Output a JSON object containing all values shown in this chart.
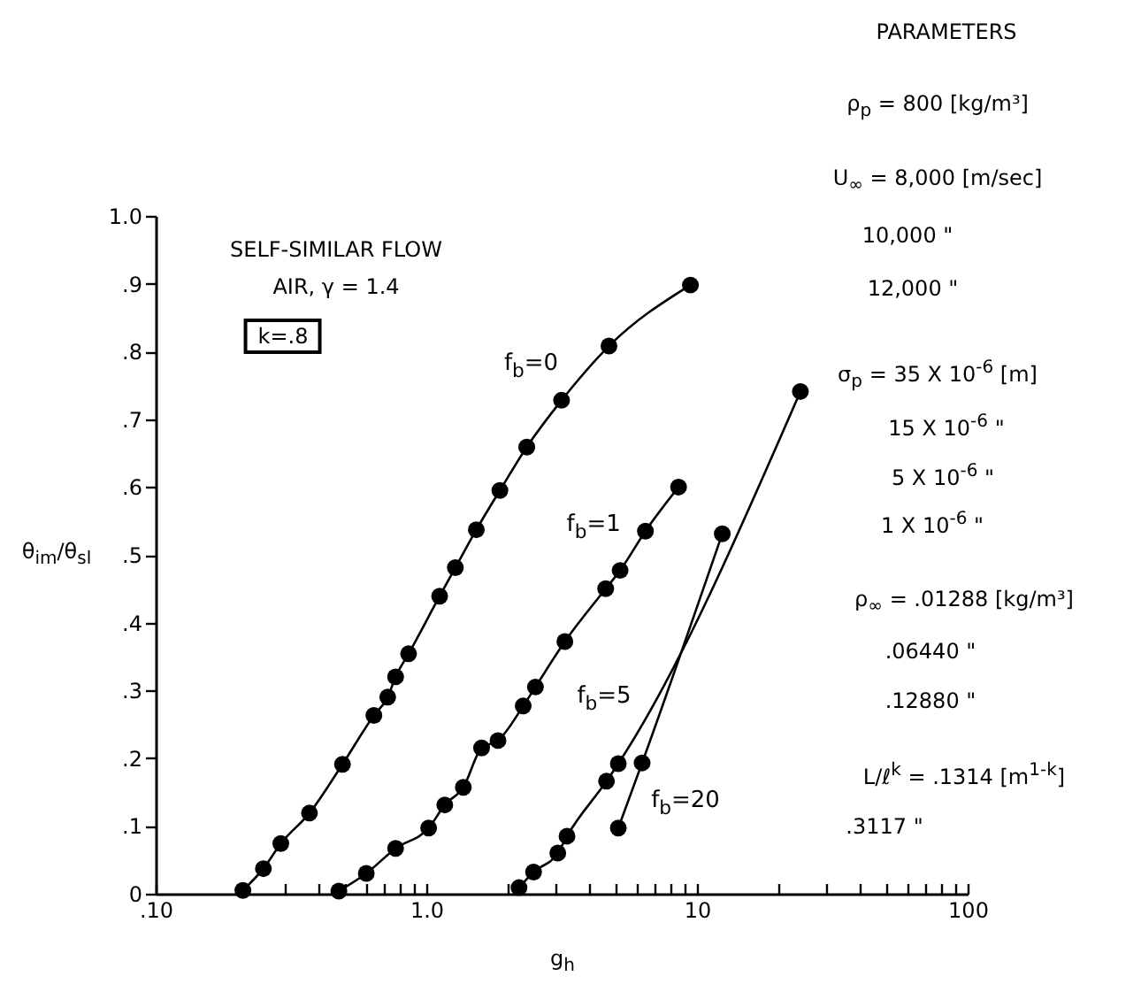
{
  "chart_data": {
    "type": "line",
    "title": "SELF-SIMILAR FLOW",
    "subtitle": "AIR, γ = 1.4",
    "xlabel": "g$_{h}$",
    "ylabel": "θ$_{im}$/θ$_{sl}$",
    "log": "x",
    "marker": "circle",
    "line_style": "solid",
    "grid": false,
    "xlim": [
      0.1,
      100
    ],
    "ylim": [
      0,
      1.0
    ],
    "xticks": [
      {
        "value": 0.1,
        "label": ".10"
      },
      {
        "value": 0.2,
        "label": null
      },
      {
        "value": 0.3,
        "label": null
      },
      {
        "value": 0.4,
        "label": null
      },
      {
        "value": 0.5,
        "label": null
      },
      {
        "value": 0.6,
        "label": null
      },
      {
        "value": 0.7,
        "label": null
      },
      {
        "value": 0.8,
        "label": null
      },
      {
        "value": 0.9,
        "label": null
      },
      {
        "value": 1,
        "label": "1.0"
      },
      {
        "value": 2,
        "label": null
      },
      {
        "value": 3,
        "label": null
      },
      {
        "value": 4,
        "label": null
      },
      {
        "value": 5,
        "label": null
      },
      {
        "value": 6,
        "label": null
      },
      {
        "value": 7,
        "label": null
      },
      {
        "value": 8,
        "label": null
      },
      {
        "value": 9,
        "label": null
      },
      {
        "value": 10,
        "label": "10"
      },
      {
        "value": 20,
        "label": null
      },
      {
        "value": 30,
        "label": null
      },
      {
        "value": 40,
        "label": null
      },
      {
        "value": 50,
        "label": null
      },
      {
        "value": 60,
        "label": null
      },
      {
        "value": 70,
        "label": null
      },
      {
        "value": 80,
        "label": null
      },
      {
        "value": 90,
        "label": null
      },
      {
        "value": 100,
        "label": "100"
      }
    ],
    "yticks": [
      0,
      {
        "value": 0.1,
        "label": ".1"
      },
      {
        "value": 0.2,
        "label": ".2"
      },
      {
        "value": 0.3,
        "label": ".3"
      },
      {
        "value": 0.4,
        "label": ".4"
      },
      {
        "value": 0.5,
        "label": ".5"
      },
      {
        "value": 0.6,
        "label": ".6"
      },
      {
        "value": 0.7,
        "label": ".7"
      },
      {
        "value": 0.8,
        "label": ".8"
      },
      {
        "value": 0.9,
        "label": ".9"
      },
      {
        "value": 1.0,
        "label": "1.0"
      }
    ],
    "series": [
      {
        "name": "f$_{b}$=0",
        "color": "#000000",
        "x": [
          0.21,
          0.25,
          0.29,
          0.37,
          0.49,
          0.64,
          0.72,
          0.77,
          0.86,
          1.12,
          1.28,
          1.53,
          1.87,
          2.35,
          3.16,
          4.73,
          9.46
        ],
        "values": [
          0.005,
          0.037,
          0.074,
          0.119,
          0.191,
          0.263,
          0.29,
          0.32,
          0.354,
          0.439,
          0.481,
          0.537,
          0.595,
          0.659,
          0.728,
          0.808,
          0.898
        ]
      },
      {
        "name": "f$_{b}$=1",
        "color": "#000000",
        "x": [
          0.475,
          0.6,
          0.77,
          1.02,
          1.17,
          1.37,
          1.6,
          1.84,
          2.28,
          2.53,
          3.25,
          4.6,
          5.2,
          6.45,
          8.55
        ],
        "values": [
          0.004,
          0.03,
          0.067,
          0.097,
          0.131,
          0.157,
          0.215,
          0.226,
          0.277,
          0.305,
          0.372,
          0.45,
          0.477,
          0.535,
          0.6
        ]
      },
      {
        "name": "f$_{b}$=5",
        "color": "#000000",
        "x": [
          2.2,
          2.49,
          3.06,
          3.31,
          4.63,
          5.12,
          24.1
        ],
        "values": [
          0.009,
          0.032,
          0.06,
          0.085,
          0.166,
          0.192,
          0.741
        ]
      },
      {
        "name": "f$_{b}$=20",
        "color": "#000000",
        "x": [
          5.12,
          6.27,
          12.4
        ],
        "values": [
          0.097,
          0.193,
          0.531
        ]
      }
    ],
    "annotations": [
      "k=.8",
      "PARAMETERS",
      "ρ$_{p}$ = 800 [kg/m³]",
      "U$_{∞}$ = 8,000 [m/sec]",
      "10,000 \"",
      "12,000 \"",
      "σ$_{p}$ = 35 X 10$^{-6}$ [m]",
      "15 X 10$^{-6}$ \"",
      "5 X 10$^{-6}$ \"",
      "1 X 10$^{-6}$ \"",
      "ρ$_{∞}$ = .01288 [kg/m³]",
      ".06440 \"",
      ".12880 \"",
      "L/ℓ$^{k}$ = .1314 [m$^{1-k}$]",
      ".3117 \""
    ]
  }
}
